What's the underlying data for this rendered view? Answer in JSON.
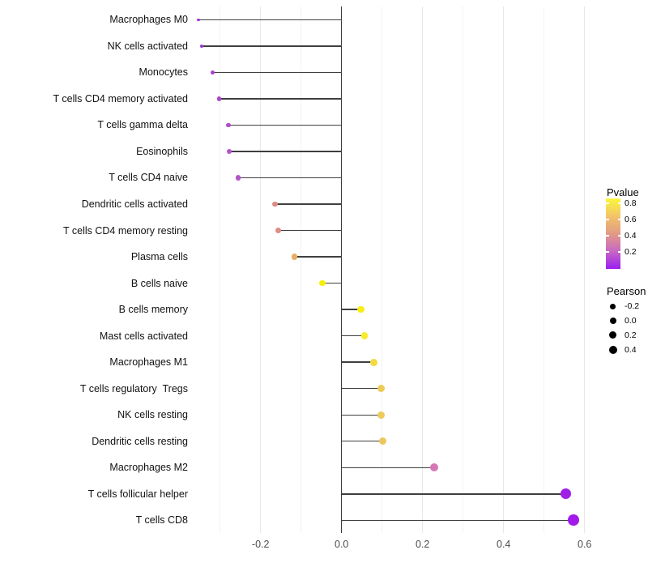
{
  "chart_data": {
    "type": "lollipop",
    "title": "",
    "xlabel": "",
    "ylabel": "",
    "x_axis": {
      "range": [
        -0.37,
        0.62
      ],
      "ticks": [
        -0.2,
        0.0,
        0.2,
        0.4,
        0.6
      ],
      "tick_labels": [
        "-0.2",
        "0.0",
        "0.2",
        "0.4",
        "0.6"
      ],
      "minor_ticks": [
        -0.3,
        -0.1,
        0.1,
        0.3,
        0.5
      ],
      "grid": "on"
    },
    "rows": [
      {
        "label": "Macrophages M0",
        "pearson": -0.353,
        "color": "#a032d8",
        "dot_radius": 1.8
      },
      {
        "label": "NK cells activated",
        "pearson": -0.345,
        "color": "#a235d6",
        "dot_radius": 2.0
      },
      {
        "label": "Monocytes",
        "pearson": -0.319,
        "color": "#aa3ed0",
        "dot_radius": 2.5
      },
      {
        "label": "T cells CD4 memory activated",
        "pearson": -0.303,
        "color": "#ae44cd",
        "dot_radius": 2.7
      },
      {
        "label": "T cells gamma delta",
        "pearson": -0.28,
        "color": "#b34bc9",
        "dot_radius": 2.9
      },
      {
        "label": "Eosinophils",
        "pearson": -0.278,
        "color": "#b750cb",
        "dot_radius": 3.0
      },
      {
        "label": "T cells CD4 naive",
        "pearson": -0.256,
        "color": "#b155c5",
        "dot_radius": 3.2
      },
      {
        "label": "Dendritic cells activated",
        "pearson": -0.165,
        "color": "#dc8b82",
        "dot_radius": 3.4
      },
      {
        "label": "T cells CD4 memory resting",
        "pearson": -0.157,
        "color": "#dd8d84",
        "dot_radius": 3.5
      },
      {
        "label": "Plasma cells",
        "pearson": -0.117,
        "color": "#e9ad60",
        "dot_radius": 3.7
      },
      {
        "label": "B cells naive",
        "pearson": -0.048,
        "color": "#f6f000",
        "dot_radius": 3.9
      },
      {
        "label": "B cells memory",
        "pearson": 0.048,
        "color": "#f8ee14",
        "dot_radius": 4.3
      },
      {
        "label": "Mast cells activated",
        "pearson": 0.057,
        "color": "#f8eb28",
        "dot_radius": 4.3
      },
      {
        "label": "Macrophages M1",
        "pearson": 0.079,
        "color": "#f2da45",
        "dot_radius": 4.4
      },
      {
        "label": "T cells regulatory  Tregs",
        "pearson": 0.098,
        "color": "#edcb58",
        "dot_radius": 4.5
      },
      {
        "label": "NK cells resting",
        "pearson": 0.098,
        "color": "#ecca5c",
        "dot_radius": 4.5
      },
      {
        "label": "Dendritic cells resting",
        "pearson": 0.102,
        "color": "#ebc75f",
        "dot_radius": 4.6
      },
      {
        "label": "Macrophages M2",
        "pearson": 0.228,
        "color": "#d678b4",
        "dot_radius": 5.0
      },
      {
        "label": "T cells follicular helper",
        "pearson": 0.553,
        "color": "#a01fe6",
        "dot_radius": 6.6
      },
      {
        "label": "T cells CD8",
        "pearson": 0.573,
        "color": "#a219ea",
        "dot_radius": 6.9
      }
    ],
    "legend": {
      "pvalue": {
        "title": "Pvalue",
        "tick_labels": [
          "0.8",
          "0.6",
          "0.4",
          "0.2"
        ],
        "gradient_stops": [
          "#fbf63c",
          "#f2c468",
          "#e29a86",
          "#c867c4",
          "#9b1ff0"
        ]
      },
      "pearson": {
        "title": "Pearson",
        "entries": [
          {
            "label": "-0.2",
            "radius": 3.3
          },
          {
            "label": "0.0",
            "radius": 4.0
          },
          {
            "label": "0.2",
            "radius": 4.5
          },
          {
            "label": "0.4",
            "radius": 5.0
          }
        ]
      },
      "position": "right"
    },
    "colors": {
      "stem": "#3f3f3f",
      "zero_line": "#3a3a3a",
      "grid_major": "#e7e7e7",
      "grid_minor": "#f3f3f3",
      "axis_text": "#4d4d4d",
      "label_text": "#111111"
    }
  }
}
